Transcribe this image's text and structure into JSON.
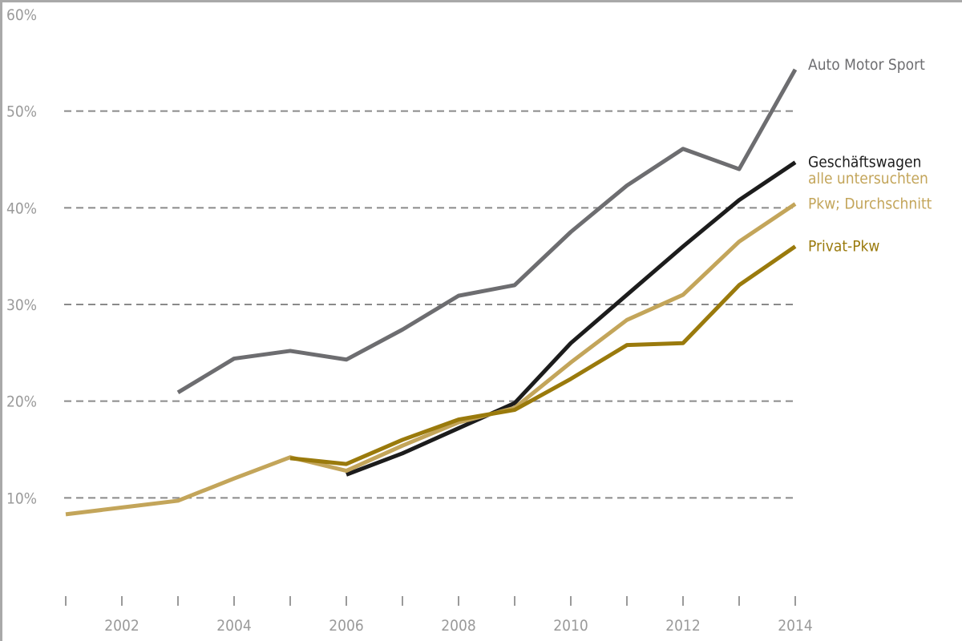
{
  "chart_data": {
    "type": "line",
    "title": "",
    "xlabel": "",
    "ylabel": "",
    "x": [
      2001,
      2002,
      2003,
      2004,
      2005,
      2006,
      2007,
      2008,
      2009,
      2010,
      2011,
      2012,
      2013,
      2014
    ],
    "xlim": [
      2001,
      2014
    ],
    "ylim": [
      0,
      60
    ],
    "x_tick_labels": [
      "2002",
      "2004",
      "2006",
      "2008",
      "2010",
      "2012",
      "2014"
    ],
    "x_tick_values": [
      2002,
      2004,
      2006,
      2008,
      2010,
      2012,
      2014
    ],
    "y_tick_labels": [
      "10%",
      "20%",
      "30%",
      "40%",
      "50%",
      "60%"
    ],
    "y_tick_values": [
      10,
      20,
      30,
      40,
      50,
      60
    ],
    "grid": "horizontal dashed",
    "legend": "direct labels at right end of lines",
    "series": [
      {
        "name": "Auto Motor Sport",
        "label_lines": [
          "Auto Motor Sport"
        ],
        "color": "#6d6d70",
        "values": [
          null,
          null,
          20.9,
          24.4,
          25.2,
          24.3,
          27.4,
          30.9,
          32.0,
          37.5,
          42.3,
          46.1,
          44.0,
          54.3
        ]
      },
      {
        "name": "Geschäftswagen",
        "label_lines": [
          "Geschäftswagen"
        ],
        "color": "#1c1c1c",
        "values": [
          null,
          null,
          null,
          null,
          null,
          12.4,
          14.6,
          17.2,
          19.8,
          26.0,
          31.0,
          36.0,
          40.8,
          44.7
        ]
      },
      {
        "name": "alle untersuchten Pkw; Durchschnitt",
        "label_lines": [
          "alle untersuchten",
          "Pkw; Durchschnitt"
        ],
        "color": "#c3a55a",
        "values": [
          8.3,
          9.0,
          9.7,
          12.0,
          14.2,
          12.8,
          15.4,
          17.8,
          19.3,
          24.0,
          28.4,
          31.0,
          36.5,
          40.4
        ]
      },
      {
        "name": "Privat-Pkw",
        "label_lines": [
          "Privat-Pkw"
        ],
        "color": "#9a7a0c",
        "values": [
          null,
          null,
          null,
          null,
          14.1,
          13.5,
          16.0,
          18.1,
          19.1,
          22.3,
          25.8,
          26.0,
          32.0,
          36.0
        ]
      }
    ]
  }
}
